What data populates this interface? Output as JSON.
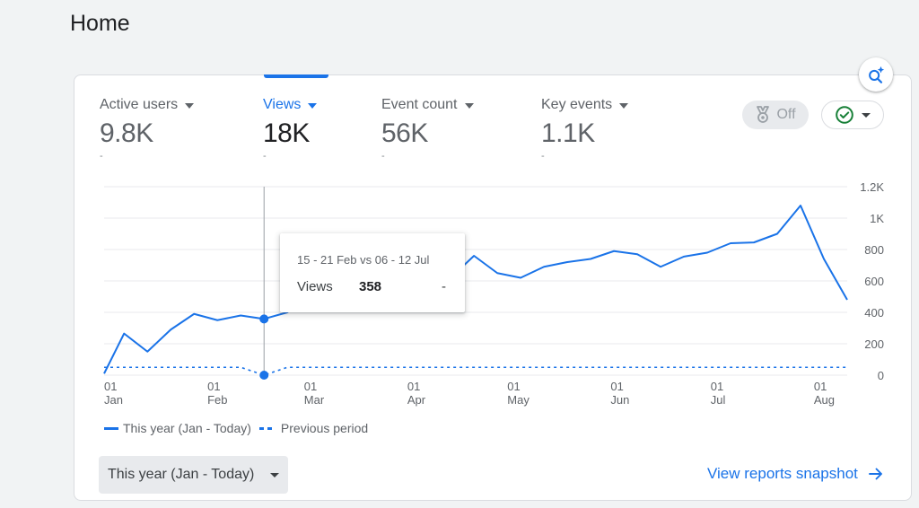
{
  "page": {
    "title": "Home"
  },
  "metrics": [
    {
      "label": "Active users",
      "value": "9.8K",
      "delta": "-",
      "selected": false
    },
    {
      "label": "Views",
      "value": "18K",
      "delta": "-",
      "selected": true
    },
    {
      "label": "Event count",
      "value": "56K",
      "delta": "-",
      "selected": false
    },
    {
      "label": "Key events",
      "value": "1.1K",
      "delta": "-",
      "selected": false
    }
  ],
  "controls": {
    "toggle_label": "Off",
    "toggle_icon": "medal-icon",
    "status_icon": "check-circle-icon"
  },
  "tooltip": {
    "title": "15 - 21 Feb vs 06 - 12 Jul",
    "metric": "Views",
    "value": "358",
    "previous": "-"
  },
  "legend": {
    "current": "This year (Jan - Today)",
    "previous": "Previous period"
  },
  "footer": {
    "date_range": "This year (Jan - Today)",
    "link": "View reports snapshot"
  },
  "colors": {
    "accent": "#1a73e8",
    "check": "#188038"
  },
  "chart_data": {
    "type": "line",
    "ylim": [
      0,
      1200
    ],
    "y_ticks": [
      "0",
      "200",
      "400",
      "600",
      "800",
      "1K",
      "1.2K"
    ],
    "x_ticks": [
      {
        "day": "01",
        "month": "Jan"
      },
      {
        "day": "01",
        "month": "Feb"
      },
      {
        "day": "01",
        "month": "Mar"
      },
      {
        "day": "01",
        "month": "Apr"
      },
      {
        "day": "01",
        "month": "May"
      },
      {
        "day": "01",
        "month": "Jun"
      },
      {
        "day": "01",
        "month": "Jul"
      },
      {
        "day": "01",
        "month": "Aug"
      }
    ],
    "x": [
      "2024-01-01",
      "2024-01-07",
      "2024-01-14",
      "2024-01-21",
      "2024-01-28",
      "2024-02-04",
      "2024-02-11",
      "2024-02-18",
      "2024-02-25",
      "2024-03-03",
      "2024-03-10",
      "2024-03-17",
      "2024-03-24",
      "2024-03-31",
      "2024-04-07",
      "2024-04-14",
      "2024-04-21",
      "2024-04-28",
      "2024-05-05",
      "2024-05-12",
      "2024-05-19",
      "2024-05-26",
      "2024-06-02",
      "2024-06-09",
      "2024-06-16",
      "2024-06-23",
      "2024-06-30",
      "2024-07-07",
      "2024-07-14",
      "2024-07-21",
      "2024-07-28",
      "2024-08-04",
      "2024-08-11"
    ],
    "series": [
      {
        "name": "This year (Jan - Today)",
        "style": "solid",
        "values": [
          10,
          265,
          150,
          290,
          390,
          350,
          380,
          358,
          400,
          520,
          535,
          600,
          600,
          590,
          605,
          620,
          760,
          650,
          620,
          690,
          720,
          740,
          790,
          770,
          690,
          755,
          780,
          840,
          845,
          900,
          1080,
          740,
          480
        ]
      },
      {
        "name": "Previous period",
        "style": "dashed",
        "values": [
          50,
          50,
          50,
          50,
          50,
          50,
          50,
          0,
          50,
          50,
          50,
          50,
          50,
          50,
          50,
          50,
          50,
          50,
          50,
          50,
          50,
          50,
          50,
          50,
          50,
          50,
          50,
          50,
          50,
          50,
          50,
          50,
          50
        ]
      }
    ],
    "highlight_index": 7
  }
}
